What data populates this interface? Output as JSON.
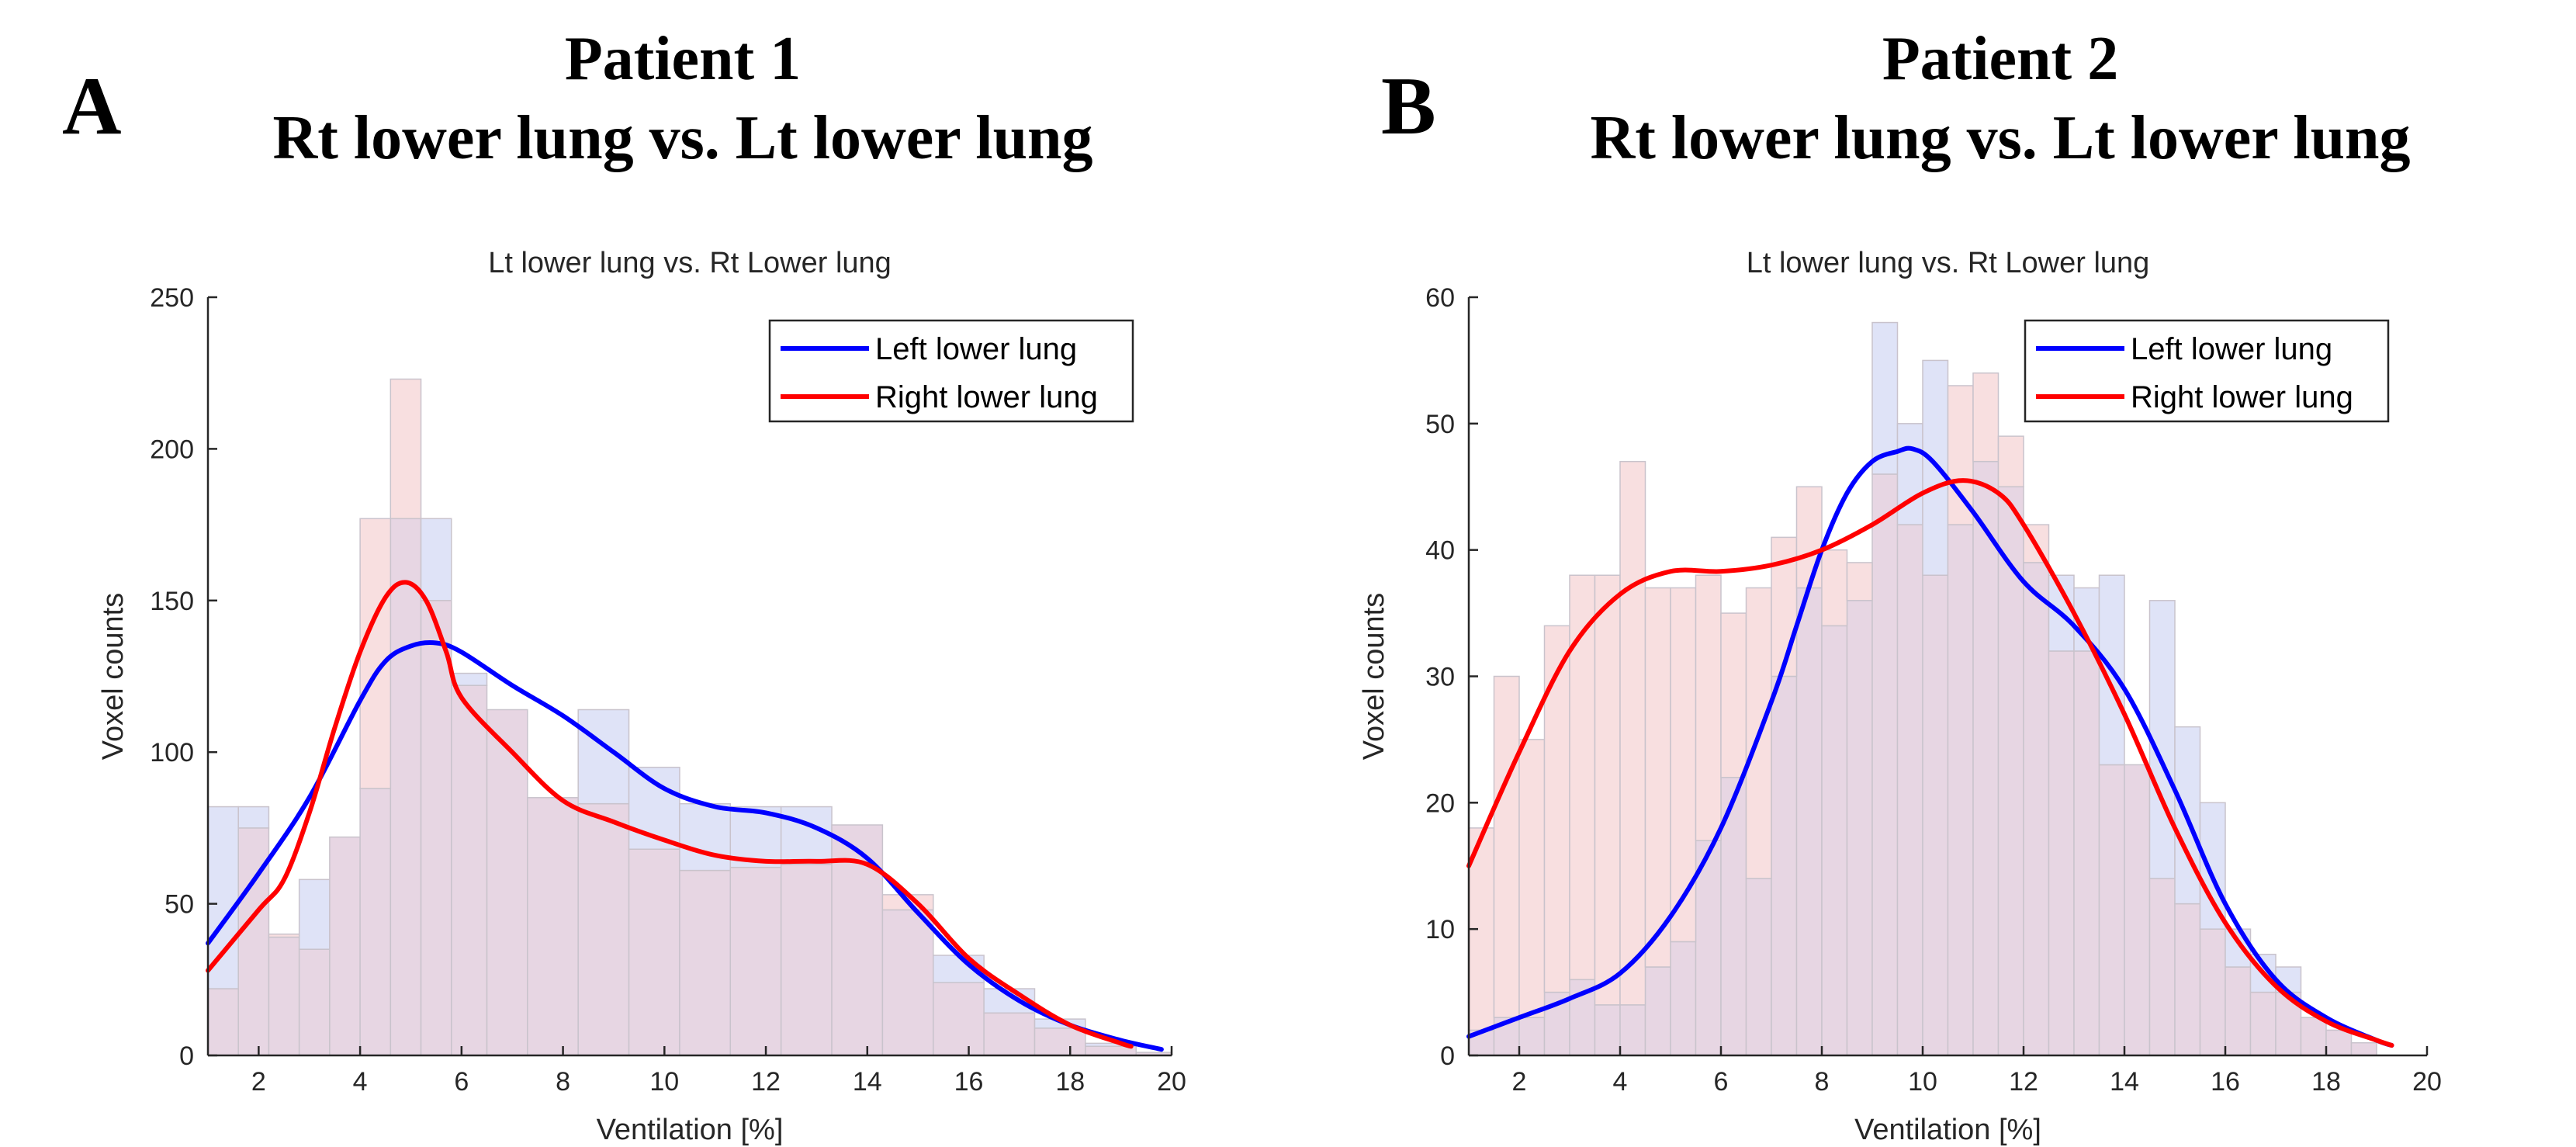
{
  "panels": [
    {
      "letter": "A",
      "title_line1": "Patient 1",
      "title_line2": "Rt lower lung vs. Lt lower lung"
    },
    {
      "letter": "B",
      "title_line1": "Patient 2",
      "title_line2": "Rt lower lung vs. Lt lower lung"
    }
  ],
  "colors": {
    "left_line": "#0000ff",
    "right_line": "#ff0000",
    "left_bar_fill": "#dfe3f7",
    "right_bar_fill": "#f8dfe0",
    "overlap_fill": "#e7d6e3",
    "bar_edge": "#c9c3cc"
  },
  "chart_data": [
    {
      "type": "bar",
      "title": "Lt lower lung vs. Rt Lower lung",
      "xlabel": "Ventilation [%]",
      "ylabel": "Voxel counts",
      "xlim": [
        1,
        20
      ],
      "ylim": [
        0,
        250
      ],
      "xticks": [
        2,
        4,
        6,
        8,
        10,
        12,
        14,
        16,
        18,
        20
      ],
      "yticks": [
        0,
        50,
        100,
        150,
        200,
        250
      ],
      "legend_position": "top-right",
      "grid": false,
      "histograms": [
        {
          "name": "Left lower lung",
          "bins": [
            [
              1,
              1.6
            ],
            [
              1.6,
              2.2
            ],
            [
              2.2,
              2.8
            ],
            [
              2.8,
              3.4
            ],
            [
              3.4,
              4.0
            ],
            [
              4.0,
              4.6
            ],
            [
              4.6,
              5.2
            ],
            [
              5.2,
              5.8
            ],
            [
              5.8,
              6.5
            ],
            [
              6.5,
              7.3
            ],
            [
              7.3,
              8.3
            ],
            [
              8.3,
              9.3
            ],
            [
              9.3,
              10.3
            ],
            [
              10.3,
              11.3
            ],
            [
              11.3,
              12.3
            ],
            [
              12.3,
              13.3
            ],
            [
              13.3,
              14.3
            ],
            [
              14.3,
              15.3
            ],
            [
              15.3,
              16.3
            ],
            [
              16.3,
              17.3
            ],
            [
              17.3,
              18.3
            ],
            [
              18.3,
              19.3
            ],
            [
              19.3,
              20
            ]
          ],
          "values": [
            82,
            82,
            39,
            58,
            72,
            88,
            177,
            177,
            126,
            114,
            85,
            114,
            95,
            83,
            82,
            82,
            76,
            48,
            33,
            22,
            12,
            4,
            1
          ]
        },
        {
          "name": "Right lower lung",
          "bins": [
            [
              1,
              1.6
            ],
            [
              1.6,
              2.2
            ],
            [
              2.2,
              2.8
            ],
            [
              2.8,
              3.4
            ],
            [
              3.4,
              4.0
            ],
            [
              4.0,
              4.6
            ],
            [
              4.6,
              5.2
            ],
            [
              5.2,
              5.8
            ],
            [
              5.8,
              6.5
            ],
            [
              6.5,
              7.3
            ],
            [
              7.3,
              8.3
            ],
            [
              8.3,
              9.3
            ],
            [
              9.3,
              10.3
            ],
            [
              10.3,
              11.3
            ],
            [
              11.3,
              12.3
            ],
            [
              12.3,
              13.3
            ],
            [
              13.3,
              14.3
            ],
            [
              14.3,
              15.3
            ],
            [
              15.3,
              16.3
            ],
            [
              16.3,
              17.3
            ],
            [
              17.3,
              18.3
            ],
            [
              18.3,
              19.3
            ],
            [
              19.3,
              20
            ]
          ],
          "values": [
            22,
            75,
            40,
            35,
            72,
            177,
            223,
            150,
            122,
            114,
            85,
            83,
            68,
            61,
            62,
            63,
            76,
            53,
            24,
            14,
            9,
            3,
            1
          ]
        }
      ],
      "series": [
        {
          "name": "Left lower lung",
          "x": [
            1,
            2,
            3,
            4,
            4.5,
            5,
            5.5,
            6,
            7,
            8,
            9,
            10,
            11,
            12,
            13,
            14,
            15,
            16,
            17,
            18,
            19,
            19.8
          ],
          "y": [
            37,
            60,
            85,
            117,
            130,
            135,
            136,
            133,
            122,
            112,
            100,
            88,
            82,
            80,
            75,
            65,
            47,
            30,
            18,
            10,
            5,
            2
          ]
        },
        {
          "name": "Right lower lung",
          "x": [
            1,
            2,
            2.5,
            3,
            3.5,
            4,
            4.5,
            4.9,
            5.3,
            5.7,
            6,
            7,
            8,
            9,
            10,
            11,
            12,
            13,
            14,
            15,
            16,
            17,
            18,
            19,
            19.2
          ],
          "y": [
            28,
            48,
            58,
            80,
            108,
            133,
            151,
            156,
            150,
            133,
            118,
            100,
            84,
            77,
            71,
            66,
            64,
            64,
            63,
            50,
            32,
            20,
            10,
            4,
            3
          ]
        }
      ]
    },
    {
      "type": "bar",
      "title": "Lt lower lung vs. Rt Lower lung",
      "xlabel": "Ventilation [%]",
      "ylabel": "Voxel counts",
      "xlim": [
        1,
        20
      ],
      "ylim": [
        0,
        60
      ],
      "xticks": [
        2,
        4,
        6,
        8,
        10,
        12,
        14,
        16,
        18,
        20
      ],
      "yticks": [
        0,
        10,
        20,
        30,
        40,
        50,
        60
      ],
      "legend_position": "top-right",
      "grid": false,
      "histograms": [
        {
          "name": "Left lower lung",
          "bins": [
            [
              1,
              1.5
            ],
            [
              1.5,
              2.0
            ],
            [
              2.0,
              2.5
            ],
            [
              2.5,
              3.0
            ],
            [
              3.0,
              3.5
            ],
            [
              3.5,
              4.0
            ],
            [
              4.0,
              4.5
            ],
            [
              4.5,
              5.0
            ],
            [
              5.0,
              5.5
            ],
            [
              5.5,
              6.0
            ],
            [
              6.0,
              6.5
            ],
            [
              6.5,
              7.0
            ],
            [
              7.0,
              7.5
            ],
            [
              7.5,
              8.0
            ],
            [
              8.0,
              8.5
            ],
            [
              8.5,
              9.0
            ],
            [
              9.0,
              9.5
            ],
            [
              9.5,
              10.0
            ],
            [
              10.0,
              10.5
            ],
            [
              10.5,
              11.0
            ],
            [
              11.0,
              11.5
            ],
            [
              11.5,
              12.0
            ],
            [
              12.0,
              12.5
            ],
            [
              12.5,
              13.0
            ],
            [
              13.0,
              13.5
            ],
            [
              13.5,
              14.0
            ],
            [
              14.0,
              14.5
            ],
            [
              14.5,
              15.0
            ],
            [
              15.0,
              15.5
            ],
            [
              15.5,
              16.0
            ],
            [
              16.0,
              16.5
            ],
            [
              16.5,
              17.0
            ],
            [
              17.0,
              17.5
            ],
            [
              17.5,
              18.0
            ],
            [
              18.0,
              18.5
            ],
            [
              18.5,
              19.0
            ]
          ],
          "values": [
            2,
            3,
            3,
            5,
            6,
            4,
            4,
            7,
            9,
            17,
            22,
            14,
            30,
            37,
            34,
            36,
            58,
            50,
            55,
            42,
            47,
            45,
            39,
            38,
            37,
            38,
            23,
            36,
            26,
            20,
            10,
            8,
            7,
            3,
            2,
            1
          ]
        },
        {
          "name": "Right lower lung",
          "bins": [
            [
              1,
              1.5
            ],
            [
              1.5,
              2.0
            ],
            [
              2.0,
              2.5
            ],
            [
              2.5,
              3.0
            ],
            [
              3.0,
              3.5
            ],
            [
              3.5,
              4.0
            ],
            [
              4.0,
              4.5
            ],
            [
              4.5,
              5.0
            ],
            [
              5.0,
              5.5
            ],
            [
              5.5,
              6.0
            ],
            [
              6.0,
              6.5
            ],
            [
              6.5,
              7.0
            ],
            [
              7.0,
              7.5
            ],
            [
              7.5,
              8.0
            ],
            [
              8.0,
              8.5
            ],
            [
              8.5,
              9.0
            ],
            [
              9.0,
              9.5
            ],
            [
              9.5,
              10.0
            ],
            [
              10.0,
              10.5
            ],
            [
              10.5,
              11.0
            ],
            [
              11.0,
              11.5
            ],
            [
              11.5,
              12.0
            ],
            [
              12.0,
              12.5
            ],
            [
              12.5,
              13.0
            ],
            [
              13.0,
              13.5
            ],
            [
              13.5,
              14.0
            ],
            [
              14.0,
              14.5
            ],
            [
              14.5,
              15.0
            ],
            [
              15.0,
              15.5
            ],
            [
              15.5,
              16.0
            ],
            [
              16.0,
              16.5
            ],
            [
              16.5,
              17.0
            ],
            [
              17.0,
              17.5
            ],
            [
              17.5,
              18.0
            ],
            [
              18.0,
              18.5
            ],
            [
              18.5,
              19.0
            ]
          ],
          "values": [
            18,
            30,
            25,
            34,
            38,
            38,
            47,
            37,
            37,
            38,
            35,
            37,
            41,
            45,
            40,
            39,
            46,
            42,
            38,
            53,
            54,
            49,
            42,
            32,
            32,
            23,
            23,
            14,
            12,
            10,
            7,
            5,
            5,
            3,
            2,
            1
          ]
        }
      ],
      "series": [
        {
          "name": "Left lower lung",
          "x": [
            1,
            2,
            3,
            4,
            5,
            6,
            7,
            7.5,
            8,
            8.5,
            9,
            9.5,
            9.8,
            10.2,
            11,
            12,
            13,
            14,
            15,
            16,
            17,
            18,
            19,
            19.3
          ],
          "y": [
            1.5,
            3,
            4.5,
            6.5,
            11,
            18,
            28,
            34,
            40,
            44.5,
            47,
            47.8,
            48,
            47,
            43,
            37.5,
            34,
            29,
            21,
            12,
            6,
            3,
            1.2,
            0.8
          ]
        },
        {
          "name": "Right lower lung",
          "x": [
            1,
            2,
            3,
            4,
            5,
            6,
            7,
            8,
            9,
            10,
            10.8,
            11.5,
            12,
            13,
            14,
            15,
            16,
            17,
            18,
            19,
            19.3
          ],
          "y": [
            15,
            24,
            32,
            36.5,
            38.3,
            38.3,
            38.8,
            40,
            42,
            44.5,
            45.5,
            44.5,
            42,
            35,
            27,
            18,
            10.5,
            5.5,
            2.7,
            1.2,
            0.8
          ]
        }
      ]
    }
  ]
}
